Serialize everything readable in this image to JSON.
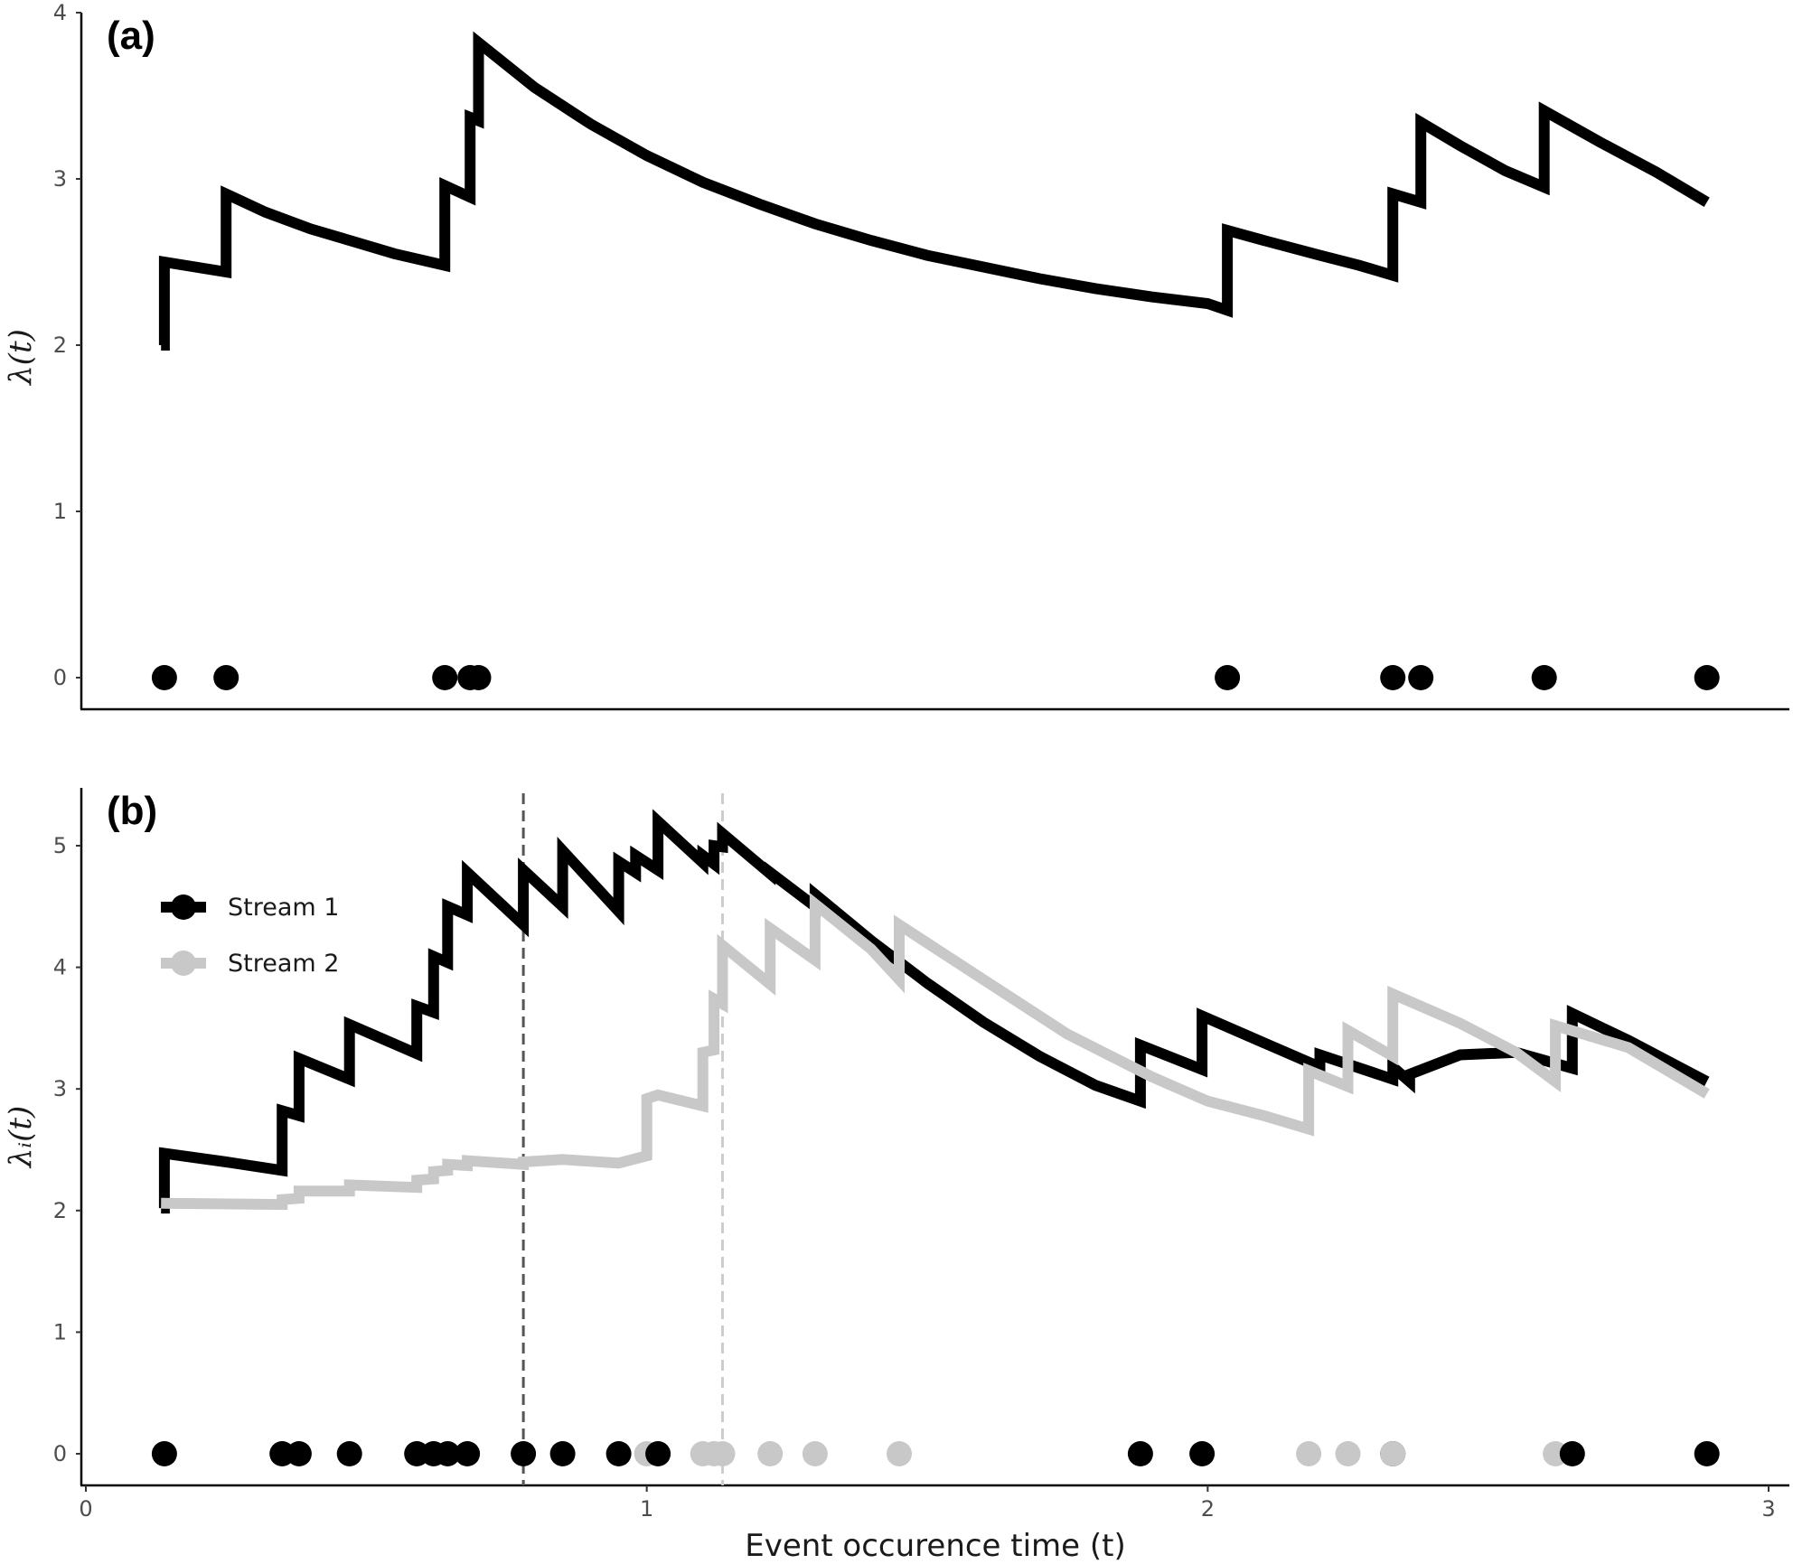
{
  "chart_data": [
    {
      "type": "line",
      "panel_label": "(a)",
      "xlabel": "",
      "ylabel": "λ(t)",
      "xlim": [
        0,
        3
      ],
      "ylim": [
        0,
        4
      ],
      "yticks": [
        0,
        1,
        2,
        3,
        4
      ],
      "ytick_labels": [
        "0",
        "1",
        "2",
        "3",
        "4"
      ],
      "grid": false,
      "legend": null,
      "series": [
        {
          "color": "#000000",
          "points": [
            [
              0.134,
              2.0
            ],
            [
              0.14,
              2.0
            ],
            [
              0.14,
              2.5
            ],
            [
              0.25,
              2.44
            ],
            [
              0.25,
              2.91
            ],
            [
              0.32,
              2.8
            ],
            [
              0.4,
              2.7
            ],
            [
              0.48,
              2.62
            ],
            [
              0.55,
              2.55
            ],
            [
              0.64,
              2.48
            ],
            [
              0.64,
              2.96
            ],
            [
              0.685,
              2.89
            ],
            [
              0.685,
              3.37
            ],
            [
              0.7,
              3.35
            ],
            [
              0.7,
              3.82
            ],
            [
              0.8,
              3.55
            ],
            [
              0.9,
              3.33
            ],
            [
              1.0,
              3.14
            ],
            [
              1.1,
              2.98
            ],
            [
              1.2,
              2.85
            ],
            [
              1.3,
              2.73
            ],
            [
              1.4,
              2.63
            ],
            [
              1.5,
              2.54
            ],
            [
              1.6,
              2.47
            ],
            [
              1.7,
              2.4
            ],
            [
              1.8,
              2.34
            ],
            [
              1.9,
              2.29
            ],
            [
              2.0,
              2.25
            ],
            [
              2.035,
              2.21
            ],
            [
              2.035,
              2.69
            ],
            [
              2.1,
              2.63
            ],
            [
              2.2,
              2.54
            ],
            [
              2.27,
              2.48
            ],
            [
              2.33,
              2.42
            ],
            [
              2.33,
              2.91
            ],
            [
              2.38,
              2.86
            ],
            [
              2.38,
              3.34
            ],
            [
              2.45,
              3.2
            ],
            [
              2.53,
              3.05
            ],
            [
              2.6,
              2.95
            ],
            [
              2.6,
              3.41
            ],
            [
              2.7,
              3.22
            ],
            [
              2.8,
              3.04
            ],
            [
              2.89,
              2.86
            ]
          ]
        }
      ],
      "events": [
        {
          "x": 0.14,
          "color": "#000000"
        },
        {
          "x": 0.25,
          "color": "#000000"
        },
        {
          "x": 0.64,
          "color": "#000000"
        },
        {
          "x": 0.685,
          "color": "#000000"
        },
        {
          "x": 0.7,
          "color": "#000000"
        },
        {
          "x": 2.035,
          "color": "#000000"
        },
        {
          "x": 2.33,
          "color": "#000000"
        },
        {
          "x": 2.38,
          "color": "#000000"
        },
        {
          "x": 2.6,
          "color": "#000000"
        },
        {
          "x": 2.89,
          "color": "#000000"
        }
      ]
    },
    {
      "type": "line",
      "panel_label": "(b)",
      "xlabel": "Event occurence time (t)",
      "ylabel": "λᵢ(t)",
      "xlim": [
        0,
        3
      ],
      "ylim": [
        0,
        5
      ],
      "xticks": [
        0,
        1,
        2,
        3
      ],
      "xtick_labels": [
        "0",
        "1",
        "2",
        "3"
      ],
      "yticks": [
        0,
        1,
        2,
        3,
        4,
        5
      ],
      "ytick_labels": [
        "0",
        "1",
        "2",
        "3",
        "4",
        "5"
      ],
      "grid": false,
      "legend_position": "top-left",
      "vlines": [
        {
          "x": 0.78,
          "color": "#555555",
          "style": "dashed"
        },
        {
          "x": 1.135,
          "color": "#cccccc",
          "style": "dashed"
        }
      ],
      "series": [
        {
          "name": "Stream 1",
          "color": "#000000",
          "points": [
            [
              0.134,
              2.02
            ],
            [
              0.14,
              2.02
            ],
            [
              0.14,
              2.47
            ],
            [
              0.25,
              2.4
            ],
            [
              0.35,
              2.33
            ],
            [
              0.35,
              2.82
            ],
            [
              0.38,
              2.78
            ],
            [
              0.38,
              3.25
            ],
            [
              0.47,
              3.08
            ],
            [
              0.47,
              3.53
            ],
            [
              0.59,
              3.29
            ],
            [
              0.59,
              3.68
            ],
            [
              0.62,
              3.63
            ],
            [
              0.62,
              4.09
            ],
            [
              0.645,
              4.04
            ],
            [
              0.645,
              4.5
            ],
            [
              0.68,
              4.43
            ],
            [
              0.68,
              4.78
            ],
            [
              0.78,
              4.35
            ],
            [
              0.78,
              4.8
            ],
            [
              0.85,
              4.5
            ],
            [
              0.85,
              4.96
            ],
            [
              0.95,
              4.46
            ],
            [
              0.95,
              4.87
            ],
            [
              0.98,
              4.78
            ],
            [
              0.98,
              4.92
            ],
            [
              1.02,
              4.8
            ],
            [
              1.02,
              5.2
            ],
            [
              1.1,
              4.86
            ],
            [
              1.1,
              4.92
            ],
            [
              1.12,
              4.85
            ],
            [
              1.12,
              5.0
            ],
            [
              1.135,
              4.99
            ],
            [
              1.135,
              5.1
            ],
            [
              1.22,
              4.77
            ],
            [
              1.22,
              4.78
            ],
            [
              1.3,
              4.5
            ],
            [
              1.3,
              4.6
            ],
            [
              1.4,
              4.22
            ],
            [
              1.5,
              3.87
            ],
            [
              1.6,
              3.55
            ],
            [
              1.7,
              3.27
            ],
            [
              1.8,
              3.03
            ],
            [
              1.88,
              2.9
            ],
            [
              1.88,
              3.36
            ],
            [
              1.99,
              3.16
            ],
            [
              1.99,
              3.6
            ],
            [
              2.1,
              3.38
            ],
            [
              2.2,
              3.18
            ],
            [
              2.2,
              3.28
            ],
            [
              2.33,
              3.08
            ],
            [
              2.33,
              3.18
            ],
            [
              2.36,
              3.06
            ],
            [
              2.36,
              3.12
            ],
            [
              2.45,
              3.28
            ],
            [
              2.55,
              3.3
            ],
            [
              2.65,
              3.17
            ],
            [
              2.65,
              3.62
            ],
            [
              2.75,
              3.4
            ],
            [
              2.89,
              3.06
            ]
          ]
        },
        {
          "name": "Stream 2",
          "color": "#c8c8c8",
          "points": [
            [
              0.134,
              2.06
            ],
            [
              0.35,
              2.05
            ],
            [
              0.35,
              2.09
            ],
            [
              0.38,
              2.1
            ],
            [
              0.38,
              2.16
            ],
            [
              0.47,
              2.16
            ],
            [
              0.47,
              2.21
            ],
            [
              0.59,
              2.19
            ],
            [
              0.59,
              2.25
            ],
            [
              0.62,
              2.26
            ],
            [
              0.62,
              2.32
            ],
            [
              0.645,
              2.33
            ],
            [
              0.645,
              2.38
            ],
            [
              0.68,
              2.37
            ],
            [
              0.68,
              2.41
            ],
            [
              0.78,
              2.38
            ],
            [
              0.78,
              2.4
            ],
            [
              0.85,
              2.42
            ],
            [
              0.95,
              2.39
            ],
            [
              1.0,
              2.45
            ],
            [
              1.0,
              2.92
            ],
            [
              1.02,
              2.95
            ],
            [
              1.1,
              2.86
            ],
            [
              1.1,
              3.3
            ],
            [
              1.12,
              3.32
            ],
            [
              1.12,
              3.74
            ],
            [
              1.135,
              3.7
            ],
            [
              1.135,
              4.18
            ],
            [
              1.22,
              3.86
            ],
            [
              1.22,
              4.32
            ],
            [
              1.3,
              4.06
            ],
            [
              1.3,
              4.52
            ],
            [
              1.4,
              4.15
            ],
            [
              1.45,
              3.9
            ],
            [
              1.45,
              4.35
            ],
            [
              1.6,
              3.9
            ],
            [
              1.75,
              3.45
            ],
            [
              1.9,
              3.1
            ],
            [
              2.0,
              2.9
            ],
            [
              2.1,
              2.78
            ],
            [
              2.18,
              2.67
            ],
            [
              2.18,
              3.15
            ],
            [
              2.25,
              3.02
            ],
            [
              2.25,
              3.48
            ],
            [
              2.33,
              3.27
            ],
            [
              2.33,
              3.78
            ],
            [
              2.45,
              3.54
            ],
            [
              2.55,
              3.3
            ],
            [
              2.62,
              3.06
            ],
            [
              2.62,
              3.52
            ],
            [
              2.75,
              3.34
            ],
            [
              2.89,
              2.96
            ]
          ]
        }
      ],
      "events": [
        {
          "x": 0.14,
          "color": "#000000"
        },
        {
          "x": 0.35,
          "color": "#000000"
        },
        {
          "x": 0.38,
          "color": "#000000"
        },
        {
          "x": 0.47,
          "color": "#000000"
        },
        {
          "x": 0.59,
          "color": "#000000"
        },
        {
          "x": 0.62,
          "color": "#000000"
        },
        {
          "x": 0.645,
          "color": "#000000"
        },
        {
          "x": 0.68,
          "color": "#000000"
        },
        {
          "x": 0.78,
          "color": "#000000"
        },
        {
          "x": 0.85,
          "color": "#000000"
        },
        {
          "x": 0.95,
          "color": "#000000"
        },
        {
          "x": 1.0,
          "color": "#c8c8c8"
        },
        {
          "x": 1.02,
          "color": "#000000"
        },
        {
          "x": 1.1,
          "color": "#c8c8c8"
        },
        {
          "x": 1.12,
          "color": "#c8c8c8"
        },
        {
          "x": 1.135,
          "color": "#c8c8c8"
        },
        {
          "x": 1.22,
          "color": "#c8c8c8"
        },
        {
          "x": 1.3,
          "color": "#c8c8c8"
        },
        {
          "x": 1.45,
          "color": "#c8c8c8"
        },
        {
          "x": 1.88,
          "color": "#000000"
        },
        {
          "x": 1.99,
          "color": "#000000"
        },
        {
          "x": 2.18,
          "color": "#c8c8c8"
        },
        {
          "x": 2.25,
          "color": "#c8c8c8"
        },
        {
          "x": 2.33,
          "color": "#000000"
        },
        {
          "x": 2.33,
          "color": "#c8c8c8"
        },
        {
          "x": 2.62,
          "color": "#c8c8c8"
        },
        {
          "x": 2.65,
          "color": "#000000"
        },
        {
          "x": 2.89,
          "color": "#000000"
        }
      ]
    }
  ]
}
